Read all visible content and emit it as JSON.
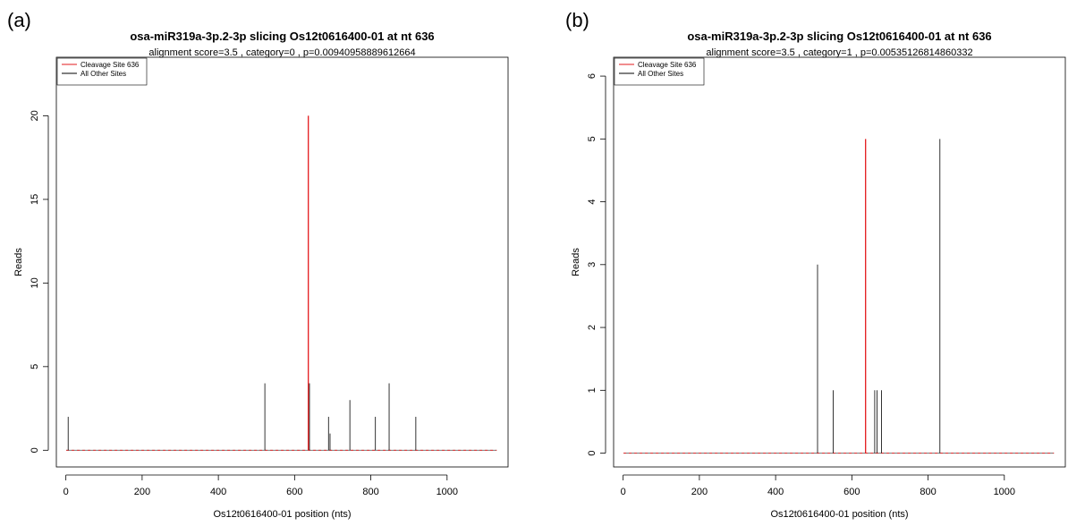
{
  "chart_data": [
    {
      "type": "line",
      "panel_label": "(a)",
      "title": "osa-miR319a-3p.2-3p slicing Os12t0616400-01 at nt 636",
      "subtitle": "alignment score=3.5 , category=0 , p=0.00940958889612664",
      "xlabel": "Os12t0616400-01 position (nts)",
      "ylabel": "Reads",
      "xlim": [
        -25,
        1160
      ],
      "ylim": [
        -1,
        23.5
      ],
      "xticks": [
        0,
        200,
        400,
        600,
        800,
        1000
      ],
      "yticks": [
        0,
        5,
        10,
        15,
        20
      ],
      "x_range": [
        1,
        1130
      ],
      "legend_position": "top-left",
      "series": [
        {
          "name": "Cleavage Site 636",
          "color": "#e31a1c",
          "points": [
            [
              636,
              20
            ]
          ]
        },
        {
          "name": "All Other Sites",
          "color": "#000000",
          "points": [
            [
              6,
              2
            ],
            [
              522,
              4
            ],
            [
              639,
              4
            ],
            [
              689,
              2
            ],
            [
              693,
              1
            ],
            [
              745,
              3
            ],
            [
              812,
              2
            ],
            [
              848,
              4
            ],
            [
              918,
              2
            ]
          ]
        }
      ]
    },
    {
      "type": "line",
      "panel_label": "(b)",
      "title": "osa-miR319a-3p.2-3p slicing Os12t0616400-01 at nt 636",
      "subtitle": "alignment score=3.5 , category=1 , p=0.00535126814860332",
      "xlabel": "Os12t0616400-01 position (nts)",
      "ylabel": "Reads",
      "xlim": [
        -25,
        1160
      ],
      "ylim": [
        -0.22,
        6.3
      ],
      "xticks": [
        0,
        200,
        400,
        600,
        800,
        1000
      ],
      "yticks": [
        0,
        1,
        2,
        3,
        4,
        5,
        6
      ],
      "x_range": [
        1,
        1130
      ],
      "legend_position": "top-left",
      "series": [
        {
          "name": "Cleavage Site 636",
          "color": "#e31a1c",
          "points": [
            [
              636,
              5
            ]
          ]
        },
        {
          "name": "All Other Sites",
          "color": "#000000",
          "points": [
            [
              510,
              3
            ],
            [
              551,
              1
            ],
            [
              660,
              1
            ],
            [
              666,
              1
            ],
            [
              678,
              1
            ],
            [
              831,
              5
            ]
          ]
        }
      ]
    }
  ]
}
